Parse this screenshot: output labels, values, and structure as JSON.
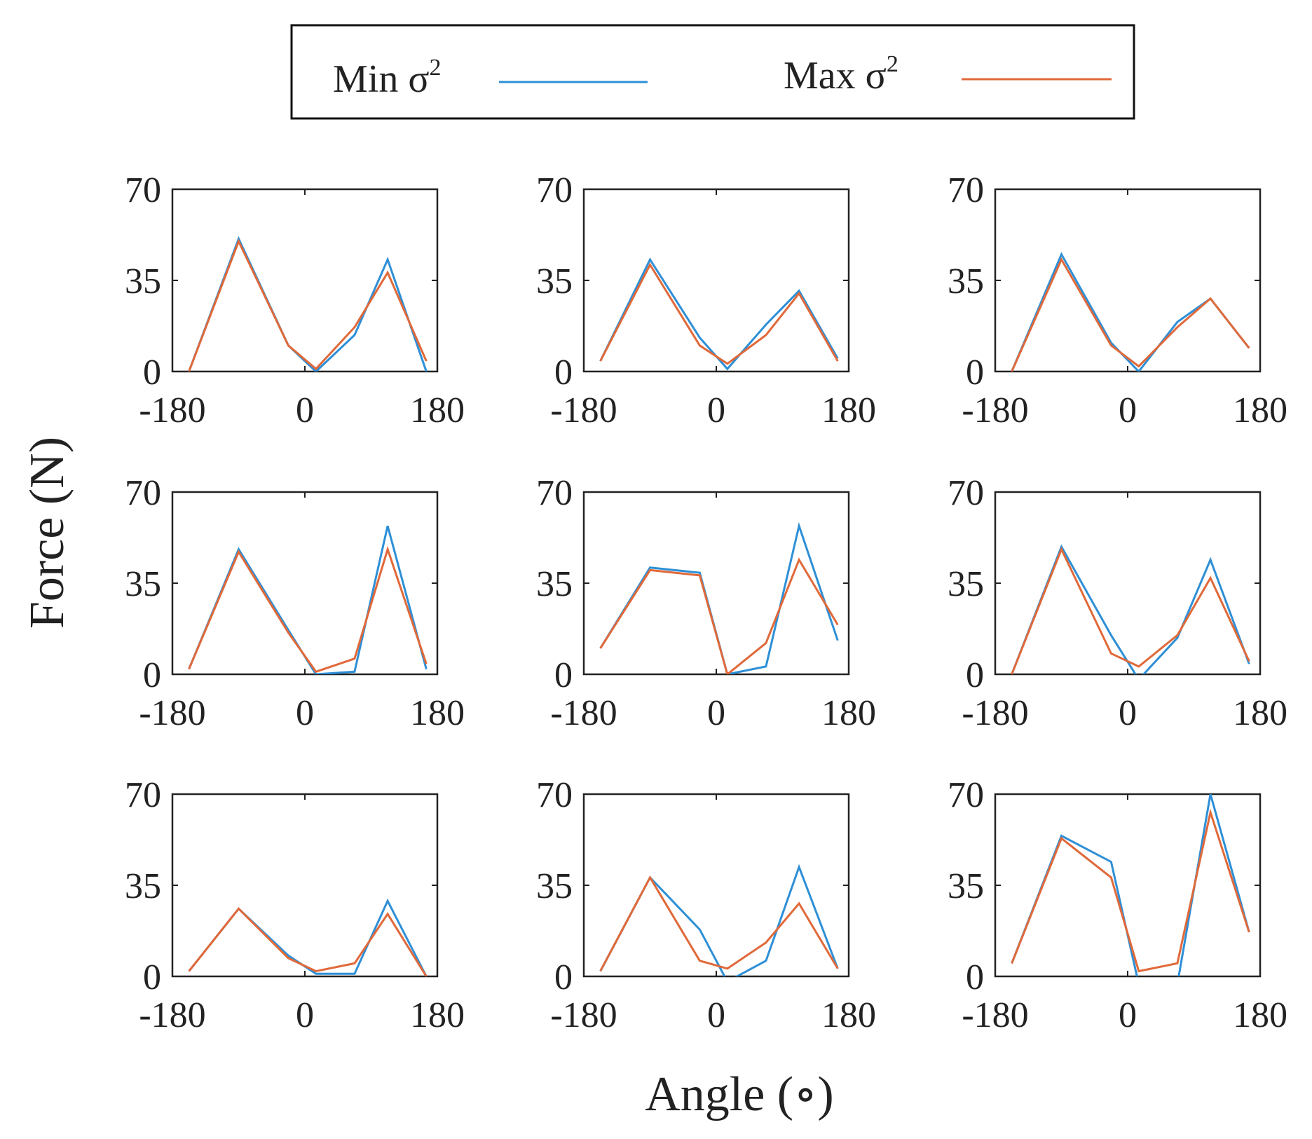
{
  "legend": {
    "min_label": "Min σ",
    "max_label": "Max σ",
    "sup": "2"
  },
  "colors": {
    "min": "#2e8fd6",
    "max": "#e0693a"
  },
  "chart_data": {
    "type": "line",
    "xlabel": "Angle (∘)",
    "ylabel": "Force (N)",
    "x": [
      -157.5,
      -90,
      -22.5,
      15,
      67.5,
      112.5,
      165
    ],
    "xlim": [
      -180,
      180
    ],
    "ylim": [
      0,
      70
    ],
    "xticks": [
      -180,
      0,
      180
    ],
    "yticks": [
      0,
      35,
      70
    ],
    "panels": [
      {
        "series": [
          {
            "name": "Min σ2",
            "values": [
              0,
              51,
              10,
              0,
              14,
              43,
              0
            ]
          },
          {
            "name": "Max σ2",
            "values": [
              0,
              50,
              10,
              1,
              17,
              38,
              4
            ]
          }
        ]
      },
      {
        "series": [
          {
            "name": "Min σ2",
            "values": [
              4,
              43,
              13,
              1,
              18,
              31,
              5
            ]
          },
          {
            "name": "Max σ2",
            "values": [
              4,
              41,
              10,
              3,
              14,
              30,
              4
            ]
          }
        ]
      },
      {
        "series": [
          {
            "name": "Min σ2",
            "values": [
              0,
              45,
              11,
              0,
              19,
              28,
              9
            ]
          },
          {
            "name": "Max σ2",
            "values": [
              0,
              43,
              10,
              2,
              17,
              28,
              9
            ]
          }
        ]
      },
      {
        "series": [
          {
            "name": "Min σ2",
            "values": [
              2,
              48,
              17,
              0,
              1,
              57,
              2
            ]
          },
          {
            "name": "Max σ2",
            "values": [
              2,
              47,
              16,
              1,
              6,
              48,
              4
            ]
          }
        ]
      },
      {
        "series": [
          {
            "name": "Min σ2",
            "values": [
              10,
              41,
              39,
              0,
              3,
              57,
              13
            ]
          },
          {
            "name": "Max σ2",
            "values": [
              10,
              40,
              38,
              0,
              12,
              44,
              19
            ]
          }
        ]
      },
      {
        "series": [
          {
            "name": "Min σ2",
            "values": [
              0,
              49,
              15,
              -2,
              14,
              44,
              4
            ]
          },
          {
            "name": "Max σ2",
            "values": [
              0,
              48,
              8,
              3,
              15,
              37,
              5
            ]
          }
        ]
      },
      {
        "series": [
          {
            "name": "Min σ2",
            "values": [
              2,
              26,
              8,
              1,
              1,
              29,
              0
            ]
          },
          {
            "name": "Max σ2",
            "values": [
              2,
              26,
              7,
              2,
              5,
              24,
              0
            ]
          }
        ]
      },
      {
        "series": [
          {
            "name": "Min σ2",
            "values": [
              2,
              38,
              18,
              -2,
              6,
              42,
              3
            ]
          },
          {
            "name": "Max σ2",
            "values": [
              2,
              38,
              6,
              3,
              13,
              28,
              3
            ]
          }
        ]
      },
      {
        "series": [
          {
            "name": "Min σ2",
            "values": [
              5,
              54,
              44,
              -3,
              -3,
              70,
              17
            ]
          },
          {
            "name": "Max σ2",
            "values": [
              5,
              53,
              38,
              2,
              5,
              63,
              17
            ]
          }
        ]
      }
    ]
  }
}
